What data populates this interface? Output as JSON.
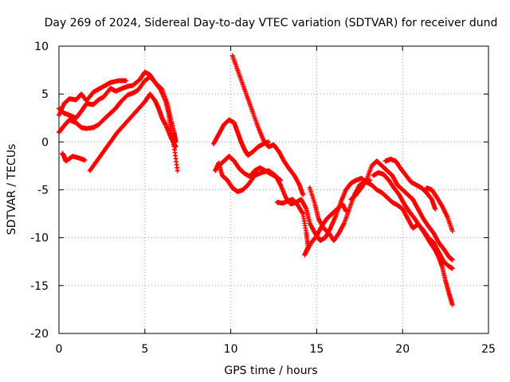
{
  "chart_data": {
    "type": "scatter",
    "title": "Day 269 of 2024, Sidereal Day-to-day VTEC variation (SDTVAR) for receiver dund",
    "xlabel": "GPS time / hours",
    "ylabel": "SDTVAR / TECUs",
    "xlim": [
      0,
      25
    ],
    "ylim": [
      -20,
      10
    ],
    "x_ticks": [
      "0",
      "5",
      "10",
      "15",
      "20",
      "25"
    ],
    "y_ticks": [
      "10",
      "5",
      "0",
      "-5",
      "-10",
      "-15",
      "-20"
    ],
    "grid": true,
    "marker": "+",
    "color": "#ff0000",
    "series": [
      {
        "points": [
          [
            0,
            2.8
          ],
          [
            0.3,
            4.0
          ],
          [
            0.6,
            4.5
          ],
          [
            1.0,
            4.4
          ],
          [
            1.3,
            5.0
          ],
          [
            1.6,
            4.3
          ],
          [
            2.0,
            5.2
          ],
          [
            2.3,
            5.5
          ],
          [
            2.7,
            5.9
          ],
          [
            3.0,
            6.2
          ],
          [
            3.5,
            6.4
          ],
          [
            3.9,
            6.4
          ]
        ]
      },
      {
        "points": [
          [
            0,
            3.5
          ],
          [
            0.3,
            3.0
          ],
          [
            0.6,
            2.8
          ],
          [
            1.0,
            2.5
          ],
          [
            1.3,
            3.2
          ],
          [
            1.6,
            4.0
          ],
          [
            2.0,
            3.9
          ],
          [
            2.3,
            4.4
          ],
          [
            2.6,
            4.7
          ],
          [
            3.0,
            5.6
          ],
          [
            3.3,
            5.3
          ],
          [
            3.7,
            5.6
          ],
          [
            4.0,
            5.8
          ],
          [
            4.3,
            5.9
          ],
          [
            4.7,
            6.5
          ],
          [
            5.0,
            7.3
          ],
          [
            5.3,
            7.0
          ],
          [
            5.6,
            6.2
          ],
          [
            5.9,
            5.5
          ],
          [
            6.2,
            4.3
          ],
          [
            6.4,
            2.8
          ],
          [
            6.5,
            1.2
          ],
          [
            6.7,
            -0.5
          ],
          [
            6.9,
            -3.0
          ]
        ]
      },
      {
        "points": [
          [
            0,
            1.0
          ],
          [
            0.3,
            1.7
          ],
          [
            0.6,
            2.3
          ],
          [
            1.0,
            2.0
          ],
          [
            1.3,
            1.5
          ],
          [
            1.6,
            1.4
          ],
          [
            2.0,
            1.5
          ],
          [
            2.3,
            1.8
          ],
          [
            2.7,
            2.5
          ],
          [
            3.0,
            3.0
          ],
          [
            3.3,
            3.5
          ],
          [
            3.6,
            4.2
          ],
          [
            4.0,
            4.9
          ],
          [
            4.3,
            5.1
          ],
          [
            4.6,
            5.4
          ],
          [
            5.0,
            6.4
          ],
          [
            5.3,
            6.8
          ],
          [
            5.7,
            6.0
          ],
          [
            6.0,
            5.5
          ],
          [
            6.3,
            4.0
          ],
          [
            6.5,
            2.5
          ],
          [
            6.7,
            1.0
          ],
          [
            6.8,
            0.0
          ]
        ]
      },
      {
        "points": [
          [
            1.8,
            -3.0
          ],
          [
            2.2,
            -2.0
          ],
          [
            2.6,
            -1.0
          ],
          [
            3.0,
            0.0
          ],
          [
            3.4,
            1.0
          ],
          [
            3.8,
            1.8
          ],
          [
            4.2,
            2.6
          ],
          [
            4.6,
            3.4
          ],
          [
            5.0,
            4.2
          ],
          [
            5.3,
            5.0
          ],
          [
            5.6,
            4.3
          ],
          [
            5.8,
            3.5
          ],
          [
            6.0,
            2.5
          ],
          [
            6.2,
            1.8
          ],
          [
            6.5,
            0.5
          ],
          [
            6.8,
            -0.5
          ]
        ]
      },
      {
        "points": [
          [
            0.2,
            -1.2
          ],
          [
            0.3,
            -1.5
          ],
          [
            0.4,
            -2.0
          ],
          [
            0.8,
            -1.5
          ],
          [
            1.2,
            -1.7
          ],
          [
            1.5,
            -1.9
          ]
        ]
      },
      {
        "points": [
          [
            9.1,
            -3.0
          ],
          [
            9.3,
            -2.2
          ],
          [
            9.5,
            -3.5
          ],
          [
            9.8,
            -4.0
          ],
          [
            10.1,
            -4.8
          ],
          [
            10.4,
            -5.2
          ],
          [
            10.7,
            -5.0
          ],
          [
            11.0,
            -4.5
          ],
          [
            11.4,
            -3.5
          ],
          [
            11.8,
            -3.2
          ],
          [
            12.2,
            -3.0
          ],
          [
            12.6,
            -3.5
          ],
          [
            12.9,
            -4.5
          ],
          [
            13.2,
            -5.8
          ],
          [
            13.5,
            -6.5
          ],
          [
            13.8,
            -6.3
          ],
          [
            14.1,
            -6.0
          ],
          [
            14.4,
            -7.0
          ],
          [
            14.6,
            -8.5
          ],
          [
            14.9,
            -9.5
          ],
          [
            15.2,
            -10.3
          ],
          [
            15.5,
            -10.0
          ],
          [
            15.8,
            -9.0
          ],
          [
            16.1,
            -7.8
          ],
          [
            16.4,
            -6.3
          ],
          [
            16.7,
            -5.0
          ],
          [
            17.0,
            -4.3
          ],
          [
            17.3,
            -4.0
          ],
          [
            17.6,
            -3.8
          ],
          [
            17.9,
            -4.2
          ],
          [
            18.2,
            -4.5
          ],
          [
            18.5,
            -5.0
          ],
          [
            18.8,
            -5.3
          ],
          [
            19.1,
            -5.8
          ],
          [
            19.4,
            -6.3
          ],
          [
            19.7,
            -6.6
          ],
          [
            20.0,
            -7.0
          ],
          [
            20.3,
            -8.0
          ],
          [
            20.6,
            -9.0
          ],
          [
            20.9,
            -8.6
          ],
          [
            21.2,
            -9.2
          ],
          [
            21.5,
            -10.0
          ],
          [
            21.8,
            -10.5
          ],
          [
            22.1,
            -11.5
          ],
          [
            22.4,
            -12.5
          ],
          [
            22.7,
            -13.0
          ],
          [
            22.9,
            -13.2
          ]
        ]
      },
      {
        "points": [
          [
            10.1,
            9.0
          ],
          [
            10.4,
            7.5
          ],
          [
            10.7,
            6.0
          ],
          [
            11.0,
            4.5
          ],
          [
            11.3,
            3.0
          ],
          [
            11.6,
            1.5
          ],
          [
            11.9,
            0.2
          ],
          [
            12.2,
            -0.5
          ],
          [
            12.5,
            -0.3
          ],
          [
            12.8,
            -1.0
          ],
          [
            13.1,
            -2.0
          ],
          [
            13.4,
            -2.8
          ],
          [
            13.7,
            -3.5
          ],
          [
            14.0,
            -4.5
          ],
          [
            14.2,
            -5.5
          ]
        ]
      },
      {
        "points": [
          [
            9.0,
            -0.2
          ],
          [
            9.3,
            0.8
          ],
          [
            9.6,
            1.8
          ],
          [
            9.9,
            2.3
          ],
          [
            10.2,
            2.0
          ],
          [
            10.4,
            1.0
          ],
          [
            10.6,
            0.0
          ],
          [
            10.8,
            -0.8
          ],
          [
            11.0,
            -1.4
          ],
          [
            11.3,
            -1.0
          ],
          [
            11.6,
            -0.5
          ],
          [
            11.9,
            -0.2
          ],
          [
            12.2,
            0.0
          ]
        ]
      },
      {
        "points": [
          [
            9.3,
            -2.5
          ],
          [
            9.6,
            -2.0
          ],
          [
            9.9,
            -1.5
          ],
          [
            10.2,
            -2.0
          ],
          [
            10.5,
            -2.8
          ],
          [
            10.8,
            -3.3
          ],
          [
            11.1,
            -3.6
          ],
          [
            11.4,
            -3.0
          ],
          [
            11.7,
            -2.7
          ],
          [
            12.0,
            -3.0
          ],
          [
            12.3,
            -3.3
          ],
          [
            12.6,
            -3.6
          ],
          [
            12.9,
            -4.0
          ]
        ]
      },
      {
        "points": [
          [
            12.7,
            -6.3
          ],
          [
            13.0,
            -6.4
          ],
          [
            13.3,
            -6.2
          ],
          [
            13.6,
            -6.0
          ],
          [
            13.9,
            -6.6
          ],
          [
            14.2,
            -7.5
          ],
          [
            14.4,
            -9.5
          ],
          [
            14.5,
            -11.0
          ],
          [
            14.3,
            -11.8
          ],
          [
            14.7,
            -10.5
          ],
          [
            15.0,
            -9.8
          ],
          [
            15.3,
            -8.8
          ],
          [
            15.6,
            -8.0
          ],
          [
            15.9,
            -7.5
          ],
          [
            16.2,
            -7.0
          ],
          [
            16.5,
            -6.5
          ],
          [
            16.7,
            -7.2
          ]
        ]
      },
      {
        "points": [
          [
            14.6,
            -4.8
          ],
          [
            14.9,
            -6.5
          ],
          [
            15.1,
            -8.0
          ],
          [
            15.4,
            -9.0
          ],
          [
            15.7,
            -9.5
          ],
          [
            16.0,
            -10.3
          ],
          [
            16.3,
            -9.5
          ],
          [
            16.6,
            -8.5
          ],
          [
            16.9,
            -7.0
          ],
          [
            17.2,
            -5.5
          ],
          [
            17.5,
            -4.5
          ],
          [
            17.8,
            -4.2
          ],
          [
            18.1,
            -4.0
          ]
        ]
      },
      {
        "points": [
          [
            17.0,
            -6.0
          ],
          [
            17.3,
            -5.5
          ],
          [
            17.6,
            -4.8
          ],
          [
            17.9,
            -4.0
          ],
          [
            18.2,
            -2.5
          ],
          [
            18.5,
            -2.0
          ],
          [
            18.8,
            -2.5
          ],
          [
            19.1,
            -3.0
          ],
          [
            19.4,
            -3.5
          ],
          [
            19.7,
            -4.5
          ],
          [
            20.0,
            -5.0
          ],
          [
            20.3,
            -5.5
          ],
          [
            20.6,
            -6.0
          ],
          [
            20.9,
            -7.0
          ],
          [
            21.2,
            -8.0
          ],
          [
            21.5,
            -8.8
          ],
          [
            21.8,
            -9.5
          ],
          [
            22.1,
            -10.5
          ],
          [
            22.4,
            -11.2
          ],
          [
            22.7,
            -12.0
          ],
          [
            22.9,
            -12.3
          ]
        ]
      },
      {
        "points": [
          [
            18.3,
            -3.5
          ],
          [
            18.6,
            -3.2
          ],
          [
            18.9,
            -3.4
          ],
          [
            19.2,
            -4.0
          ],
          [
            19.5,
            -4.8
          ],
          [
            19.8,
            -5.5
          ],
          [
            20.1,
            -6.5
          ],
          [
            20.4,
            -7.3
          ],
          [
            20.7,
            -8.0
          ],
          [
            21.0,
            -8.8
          ],
          [
            21.3,
            -9.6
          ],
          [
            21.6,
            -10.5
          ],
          [
            21.9,
            -11.3
          ],
          [
            22.1,
            -12.0
          ],
          [
            22.3,
            -13.0
          ],
          [
            22.5,
            -14.5
          ],
          [
            22.7,
            -15.8
          ],
          [
            22.9,
            -17.0
          ]
        ]
      },
      {
        "points": [
          [
            19.0,
            -2.0
          ],
          [
            19.3,
            -1.8
          ],
          [
            19.6,
            -2.0
          ],
          [
            19.9,
            -2.8
          ],
          [
            20.2,
            -3.5
          ],
          [
            20.5,
            -4.2
          ],
          [
            20.8,
            -4.5
          ],
          [
            21.1,
            -4.8
          ],
          [
            21.4,
            -5.3
          ],
          [
            21.7,
            -6.0
          ],
          [
            21.9,
            -7.0
          ]
        ]
      },
      {
        "points": [
          [
            21.4,
            -4.8
          ],
          [
            21.7,
            -5.0
          ],
          [
            22.0,
            -5.8
          ],
          [
            22.3,
            -6.7
          ],
          [
            22.6,
            -7.8
          ],
          [
            22.9,
            -9.3
          ]
        ]
      }
    ]
  }
}
